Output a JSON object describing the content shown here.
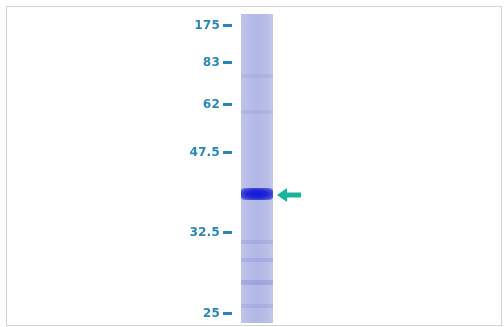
{
  "blot": {
    "markers": [
      {
        "label": "175"
      },
      {
        "label": "83"
      },
      {
        "label": "62"
      },
      {
        "label": "47.5"
      },
      {
        "label": "32.5"
      },
      {
        "label": "25"
      }
    ]
  },
  "colors": {
    "marker": "#2a86b8",
    "lane": "#b9bde8",
    "band": "#1018d8",
    "arrow": "#1bb39a"
  },
  "icons": {
    "arrow": "arrow-left-icon"
  }
}
